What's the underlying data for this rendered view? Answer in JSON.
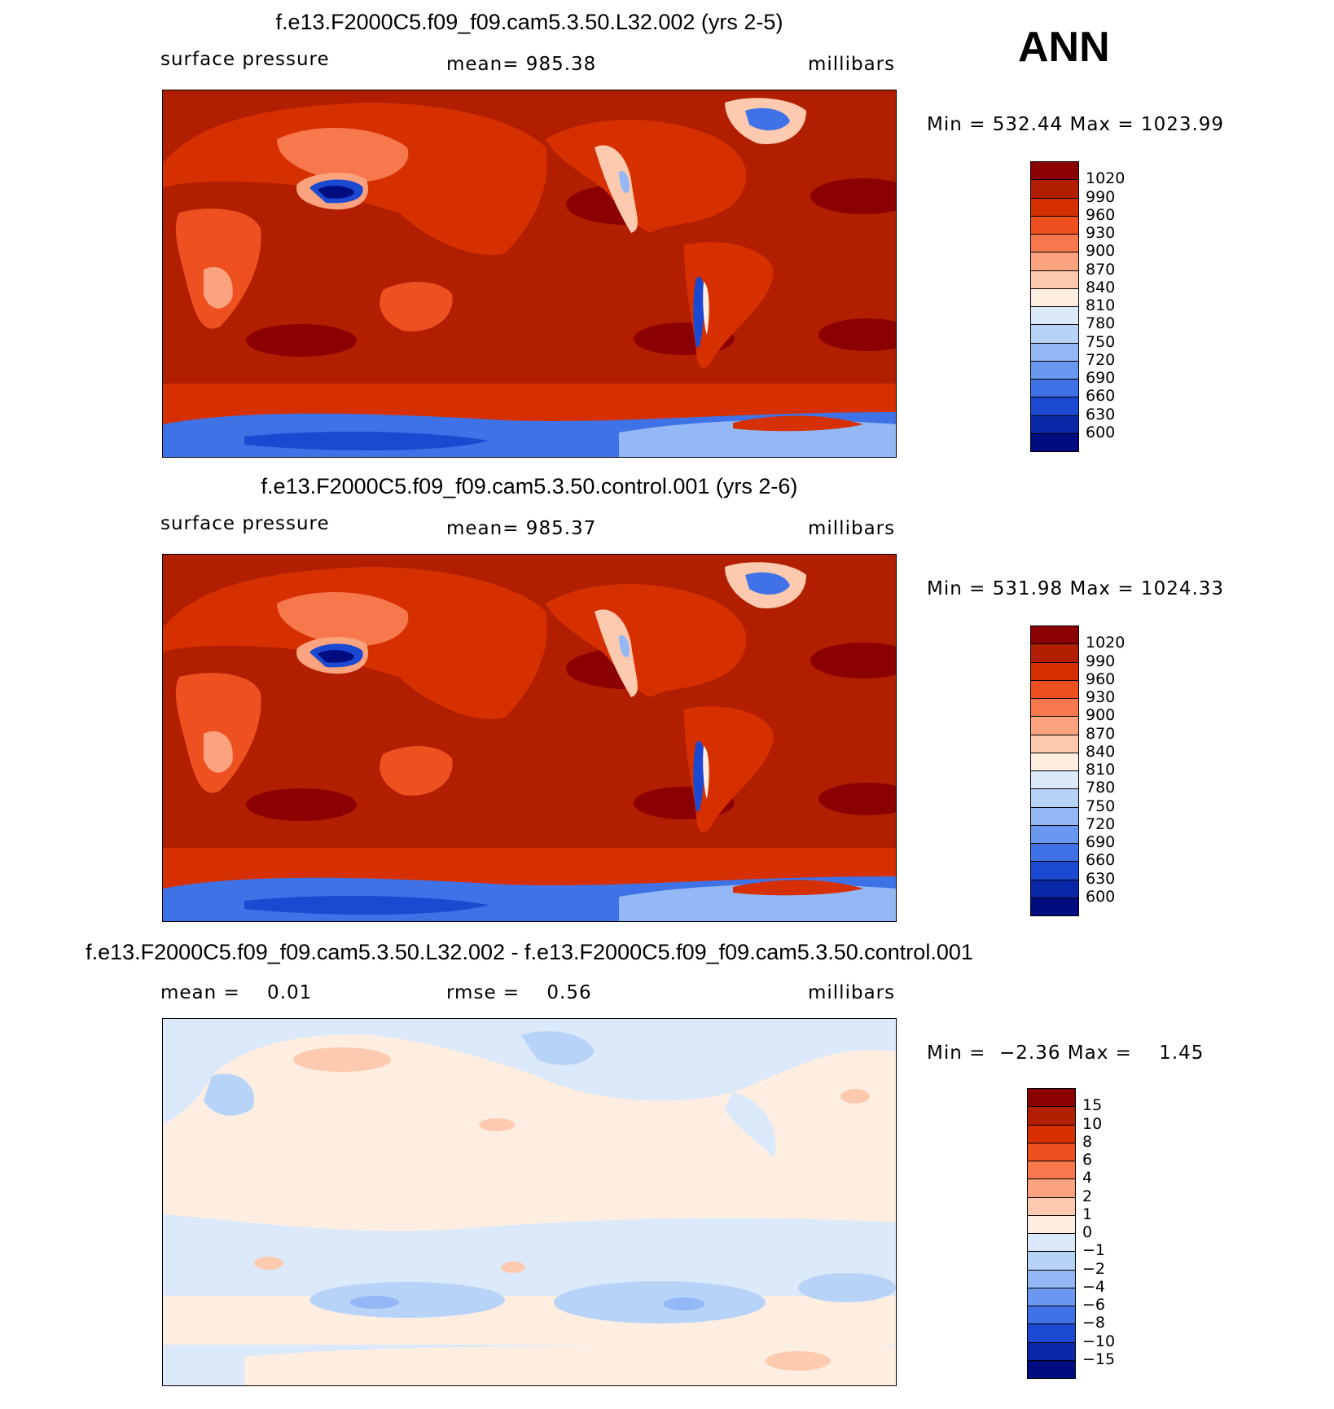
{
  "season": "ANN",
  "panels": [
    {
      "title": "f.e13.F2000C5.f09_f09.cam5.3.50.L32.002 (yrs 2-5)",
      "left_label": "surface pressure",
      "center_label": "mean= 985.38",
      "units": "millibars",
      "minmax": "Min = 532.44 Max = 1023.99",
      "kind": "abs",
      "colorbar_labels": [
        "1020",
        "990",
        "960",
        "930",
        "900",
        "870",
        "840",
        "810",
        "780",
        "750",
        "720",
        "690",
        "660",
        "630",
        "600"
      ]
    },
    {
      "title": "f.e13.F2000C5.f09_f09.cam5.3.50.control.001 (yrs 2-6)",
      "left_label": "surface pressure",
      "center_label": "mean= 985.37",
      "units": "millibars",
      "minmax": "Min = 531.98 Max = 1024.33",
      "kind": "abs",
      "colorbar_labels": [
        "1020",
        "990",
        "960",
        "930",
        "900",
        "870",
        "840",
        "810",
        "780",
        "750",
        "720",
        "690",
        "660",
        "630",
        "600"
      ]
    },
    {
      "title": "f.e13.F2000C5.f09_f09.cam5.3.50.L32.002 - f.e13.F2000C5.f09_f09.cam5.3.50.control.001",
      "left_label": "mean =    0.01",
      "center_label": "rmse =    0.56",
      "units": "millibars",
      "minmax": "Min =  −2.36 Max =    1.45",
      "kind": "diff",
      "colorbar_labels": [
        "15",
        "10",
        "8",
        "6",
        "4",
        "2",
        "1",
        "0",
        "−1",
        "−2",
        "−4",
        "−6",
        "−8",
        "−10",
        "−15"
      ]
    }
  ],
  "colors": {
    "abs_scale": [
      "#8b0000",
      "#b11e00",
      "#d73000",
      "#ee5020",
      "#f7784c",
      "#fba27e",
      "#fdcaaf",
      "#feeee2",
      "#dbe9fa",
      "#b8d3f8",
      "#93b8f5",
      "#6a97ef",
      "#3f72e6",
      "#1c49d1",
      "#0a27a8",
      "#000d80"
    ],
    "diff_scale": [
      "#8b0000",
      "#b11e00",
      "#d73000",
      "#ee5020",
      "#f7784c",
      "#fba27e",
      "#fdcaaf",
      "#feeee2",
      "#dbe9fa",
      "#b8d3f8",
      "#93b8f5",
      "#6a97ef",
      "#3f72e6",
      "#1c49d1",
      "#0a27a8",
      "#000d80"
    ]
  }
}
